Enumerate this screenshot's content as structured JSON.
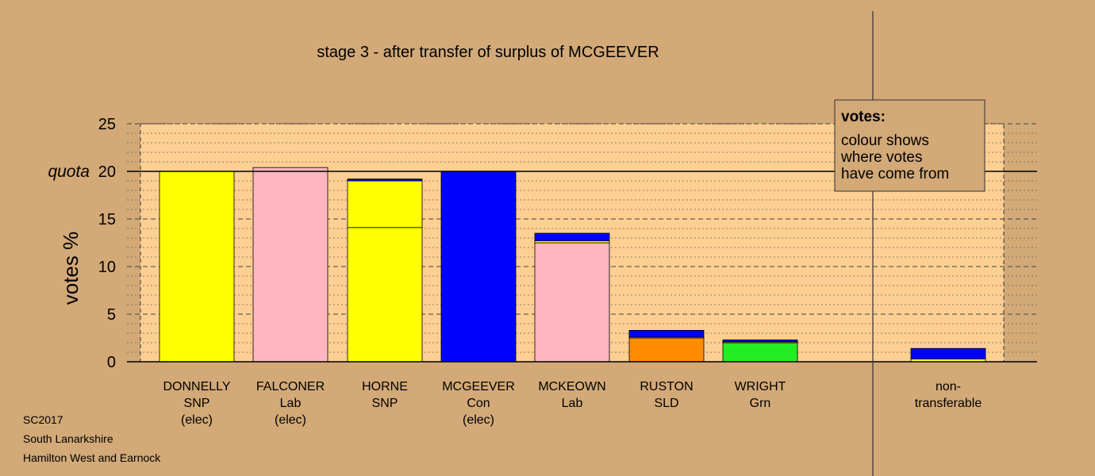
{
  "chart_data": {
    "type": "bar",
    "title": "stage 3 - after transfer of surplus of MCGEEVER",
    "ylabel": "votes %",
    "ylim": [
      0,
      25
    ],
    "yticks": [
      0,
      5,
      10,
      15,
      20,
      25
    ],
    "quota": 20,
    "quota_label": "quota",
    "grid": true,
    "categories": [
      {
        "lines": [
          "DONNELLY",
          "SNP",
          "(elec)"
        ]
      },
      {
        "lines": [
          "FALCONER",
          "Lab",
          "(elec)"
        ]
      },
      {
        "lines": [
          "HORNE",
          "SNP"
        ]
      },
      {
        "lines": [
          "MCGEEVER",
          "Con",
          "(elec)"
        ]
      },
      {
        "lines": [
          "MCKEOWN",
          "Lab"
        ]
      },
      {
        "lines": [
          "RUSTON",
          "SLD"
        ]
      },
      {
        "lines": [
          "WRIGHT",
          "Grn"
        ]
      },
      {
        "lines": [
          "non-",
          "transferable"
        ]
      }
    ],
    "bars": [
      [
        {
          "value": 20.0,
          "color": "#ffff00"
        }
      ],
      [
        {
          "value": 20.4,
          "color": "#ffb6c1"
        }
      ],
      [
        {
          "value": 14.1,
          "color": "#ffff00"
        },
        {
          "value": 4.9,
          "color": "#ffff00"
        },
        {
          "value": 0.2,
          "color": "#0000ff"
        }
      ],
      [
        {
          "value": 20.0,
          "color": "#0000ff"
        }
      ],
      [
        {
          "value": 12.5,
          "color": "#ffb6c1"
        },
        {
          "value": 0.2,
          "color": "#ffff00"
        },
        {
          "value": 0.8,
          "color": "#0000ff"
        }
      ],
      [
        {
          "value": 2.5,
          "color": "#ff8c00"
        },
        {
          "value": 0.1,
          "color": "#ffff00"
        },
        {
          "value": 0.7,
          "color": "#0000ff"
        }
      ],
      [
        {
          "value": 2.0,
          "color": "#22ee22"
        },
        {
          "value": 0.1,
          "color": "#ffff00"
        },
        {
          "value": 0.2,
          "color": "#0000ff"
        }
      ],
      [
        {
          "value": 0.3,
          "color": "#ffff00"
        },
        {
          "value": 1.1,
          "color": "#0000ff"
        }
      ]
    ],
    "legend": {
      "title": "votes:",
      "lines": [
        "colour shows",
        "where votes",
        "have come from"
      ],
      "placement": "top-right"
    },
    "colors": {
      "background": "#d2a977",
      "plot_background": "#fecf92",
      "grid": "#555555"
    }
  },
  "footer": {
    "lines": [
      "SC2017",
      "South Lanarkshire",
      "Hamilton West and Earnock"
    ]
  }
}
